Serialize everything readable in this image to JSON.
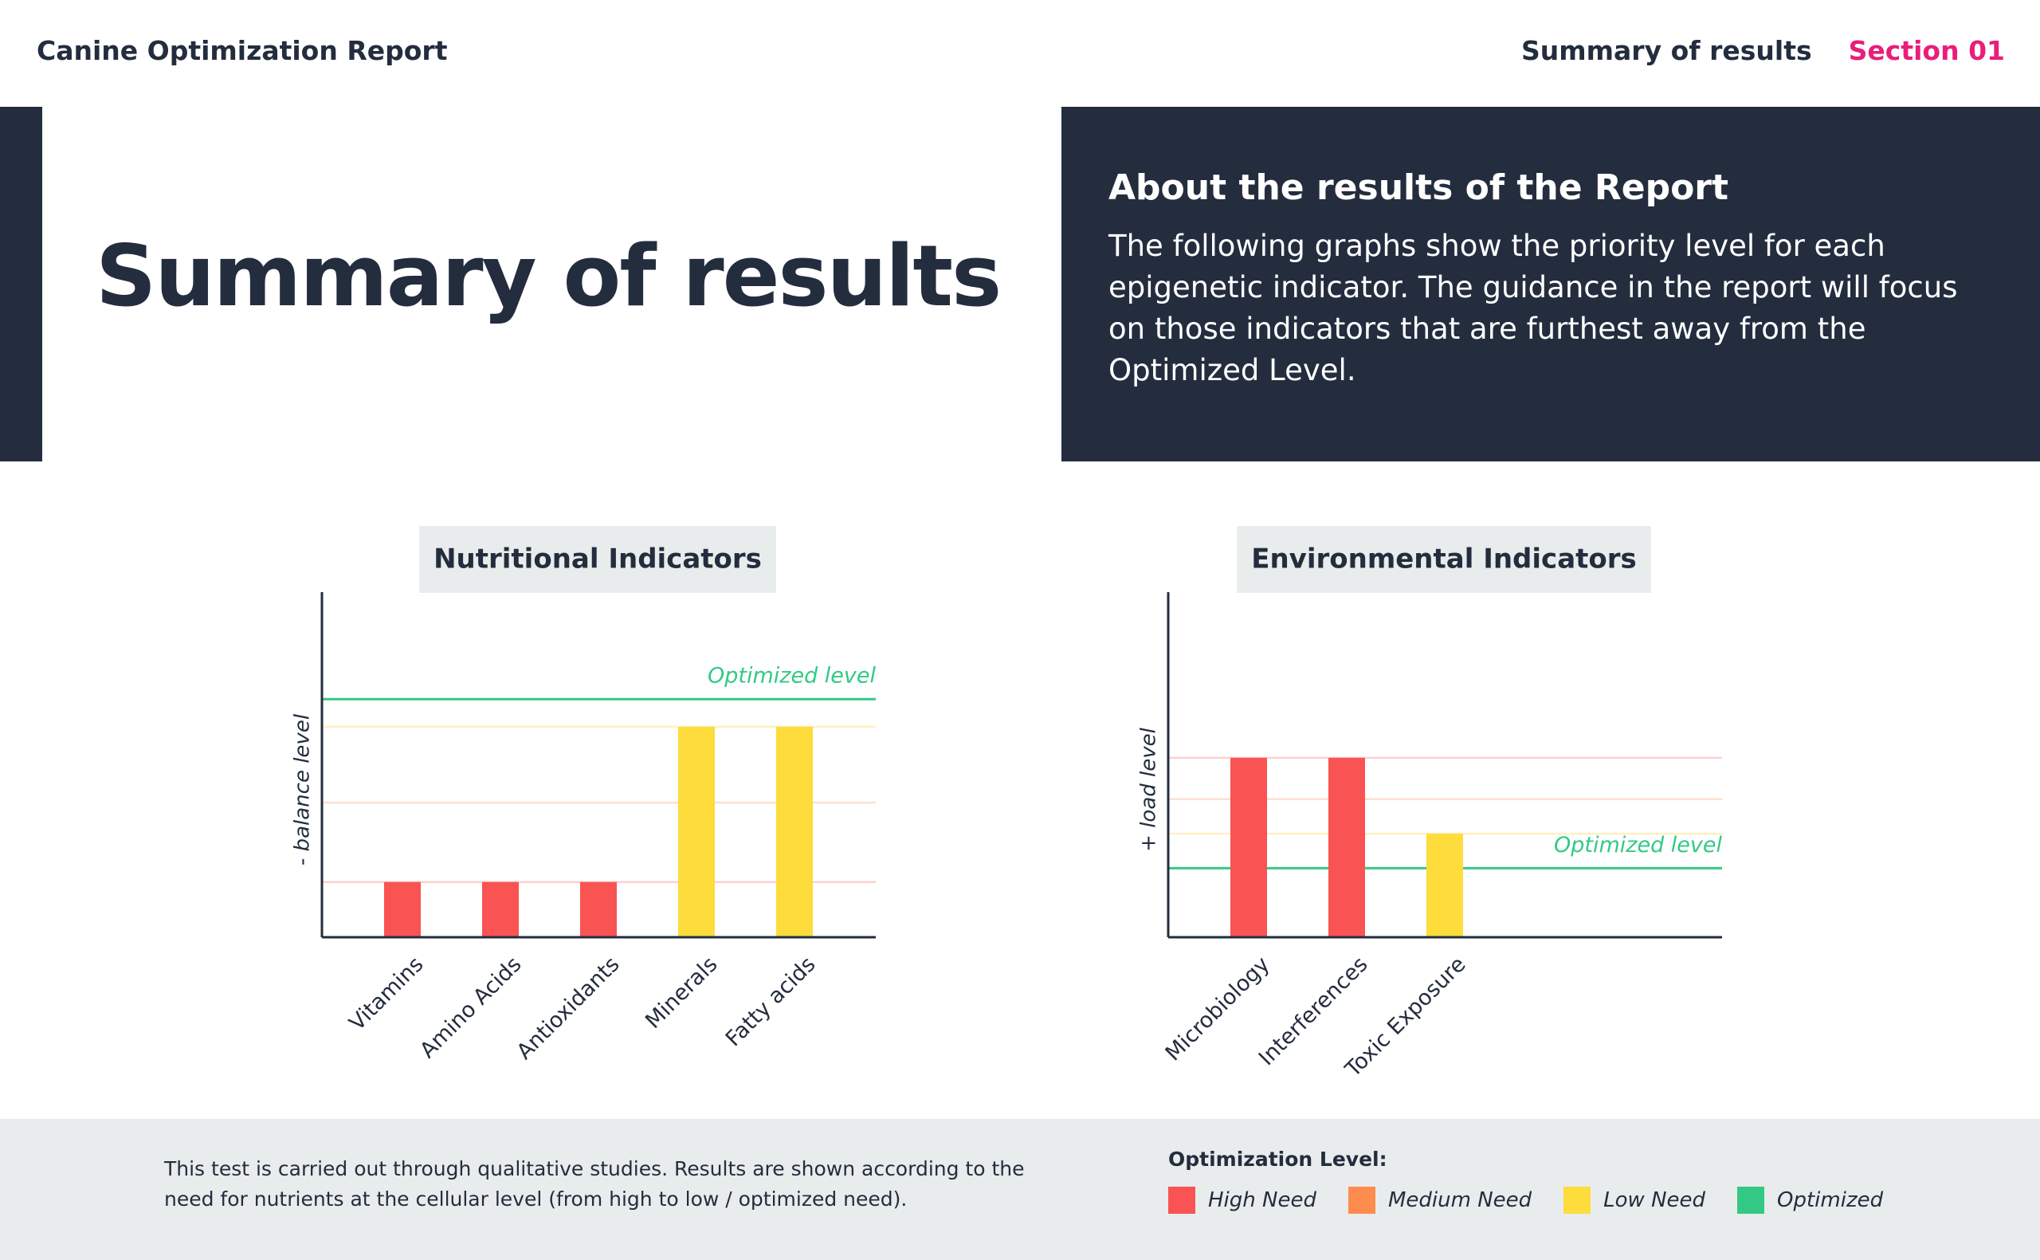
{
  "header": {
    "title": "Canine Optimization Report",
    "section_title": "Summary of results",
    "section_number": "Section 01"
  },
  "hero": {
    "title": "Summary of results"
  },
  "about": {
    "heading": "About the results of the Report",
    "text": "The following graphs show the priority level for each epigenetic indicator. The guidance in the report will focus on those indicators that are furthest away from the Optimized Level."
  },
  "chart_data": [
    {
      "type": "bar",
      "title": "Nutritional Indicators",
      "y_label": "- balance level",
      "categories": [
        "Vitamins",
        "Amino Acids",
        "Antioxidants",
        "Minerals",
        "Fatty acids"
      ],
      "values": [
        16,
        16,
        16,
        61,
        61
      ],
      "colors": [
        "#f95353",
        "#f95353",
        "#f95353",
        "#fddc3c",
        "#fddc3c"
      ],
      "ylim": [
        0,
        100
      ],
      "level_lines": [
        {
          "value": 61,
          "color": "#fff0c2"
        },
        {
          "value": 39,
          "color": "#fde0cc"
        },
        {
          "value": 16,
          "color": "#fbd2cf"
        }
      ],
      "reference_line": {
        "value": 69,
        "label": "Optimized level",
        "color": "#33c985"
      }
    },
    {
      "type": "bar",
      "title": "Environmental Indicators",
      "y_label": "+ load level",
      "categories": [
        "Microbiology",
        "Interferences",
        "Toxic Exposure"
      ],
      "values": [
        52,
        52,
        30
      ],
      "colors": [
        "#f95353",
        "#f95353",
        "#fddc3c"
      ],
      "ylim": [
        0,
        100
      ],
      "level_lines": [
        {
          "value": 52,
          "color": "#fbd2cf"
        },
        {
          "value": 40,
          "color": "#fde0cc"
        },
        {
          "value": 30,
          "color": "#fff0c2"
        }
      ],
      "reference_line": {
        "value": 20,
        "label": "Optimized level",
        "color": "#33c985"
      }
    }
  ],
  "footer": {
    "note": "This test is carried out through qualitative studies. Results are shown according to the need for nutrients at the cellular level (from high to low / optimized need).",
    "legend": {
      "title": "Optimization Level:",
      "items": [
        {
          "name": "High Need",
          "color": "#f95353"
        },
        {
          "name": "Medium Need",
          "color": "#fd8c4e"
        },
        {
          "name": "Low Need",
          "color": "#fddc3c"
        },
        {
          "name": "Optimized",
          "color": "#33c985"
        }
      ]
    }
  }
}
